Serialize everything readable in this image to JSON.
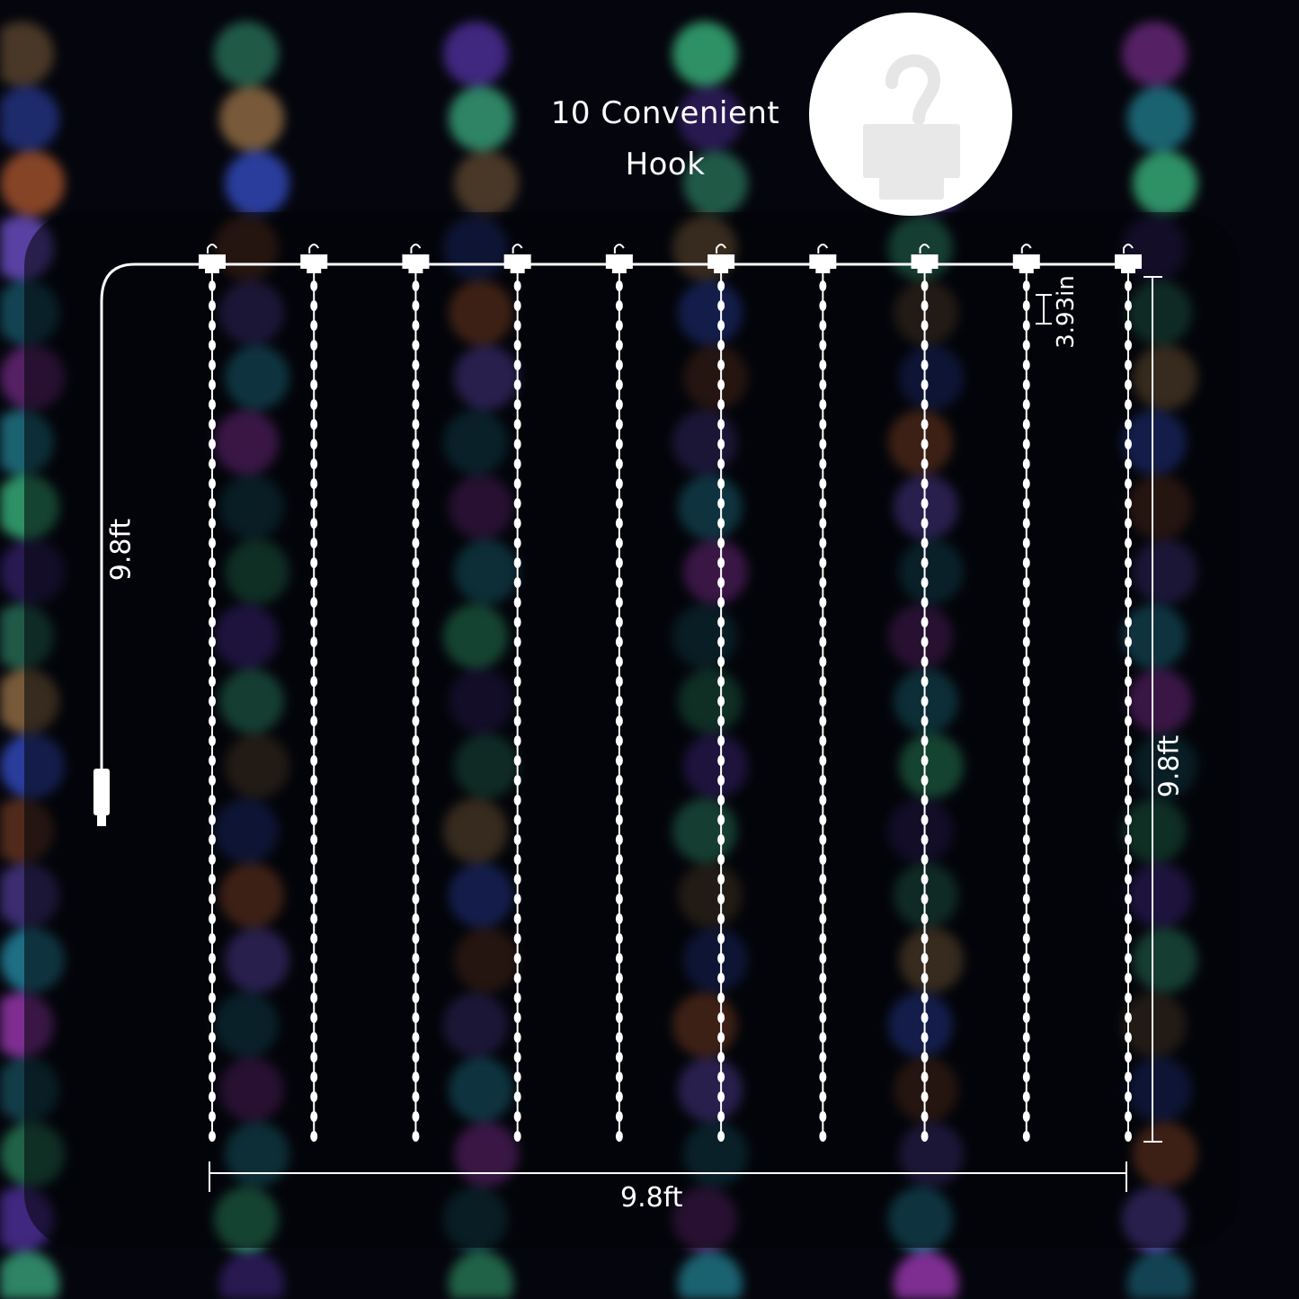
{
  "heading": {
    "line1": "10 Convenient",
    "line2": "Hook"
  },
  "dimensions": {
    "cable_length": "9.8ft",
    "curtain_height": "9.8ft",
    "curtain_width": "9.8ft",
    "bead_spacing": "3.93in"
  },
  "strand_count": 10,
  "colors": {
    "background": "#05060d",
    "diagram_line": "#ffffff",
    "bokeh": [
      "#c9955a",
      "#3fc98a",
      "#2fb7d8",
      "#3a55d8",
      "#6a3fd0",
      "#b03fc8",
      "#e0703a",
      "#3fb98a",
      "#2aa3b8",
      "#7a5ae0"
    ]
  }
}
